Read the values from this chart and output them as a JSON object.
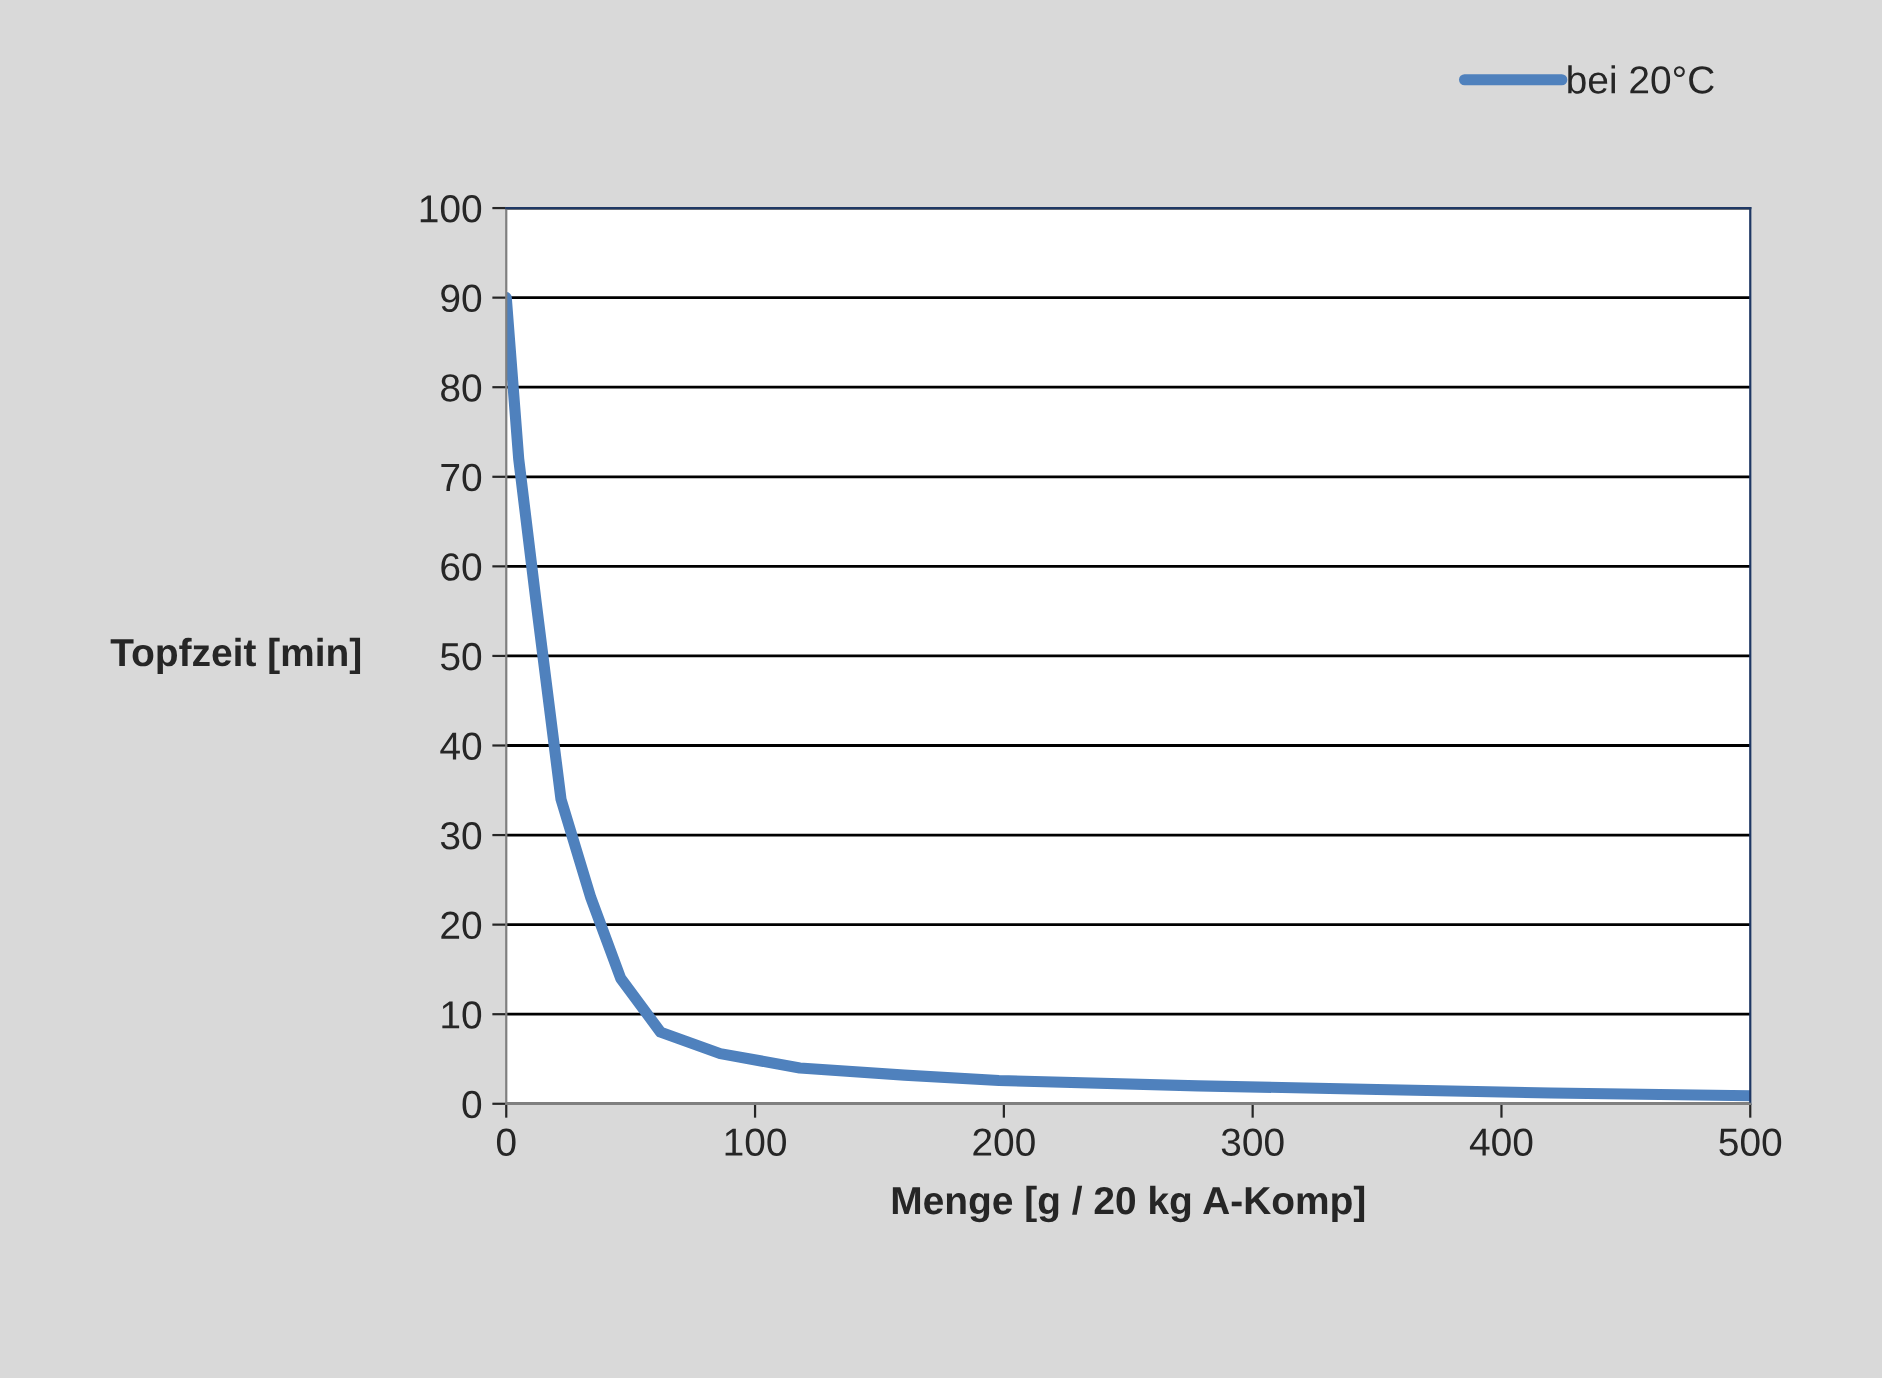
{
  "chart_data": {
    "type": "line",
    "xlabel": "Menge [g / 20 kg A-Komp]",
    "ylabel": "Topfzeit [min]",
    "x": [
      0,
      5,
      12,
      22,
      34,
      46,
      62,
      86,
      118,
      160,
      198,
      278,
      350,
      420,
      500
    ],
    "series": [
      {
        "name": "bei 20°C",
        "color": "#4f81bd",
        "values": [
          90,
          72,
          56,
          34,
          23,
          14,
          8,
          5.6,
          4,
          3.2,
          2.6,
          2,
          1.6,
          1.2,
          0.9
        ]
      }
    ],
    "xlim": [
      0,
      500
    ],
    "xticks": [
      0,
      100,
      200,
      300,
      400,
      500
    ],
    "ylim": [
      0,
      100
    ],
    "yticks": [
      0,
      10,
      20,
      30,
      40,
      50,
      60,
      70,
      80,
      90,
      100
    ],
    "grid": "y",
    "legend": "top right",
    "marker": "none",
    "line_style": "solid"
  }
}
